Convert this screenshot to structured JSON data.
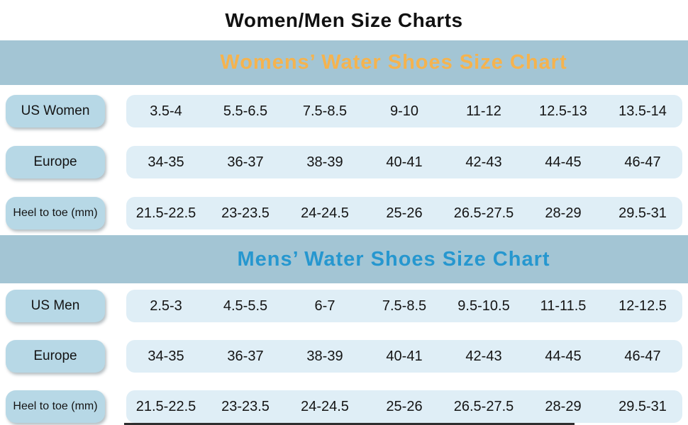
{
  "page_title": "Women/Men Size Charts",
  "colors": {
    "banner_bg": "#a3c5d4",
    "women_title_color": "#f5b34e",
    "men_title_color": "#2697cf",
    "label_box_bg": "#b7d8e6",
    "value_strip_bg": "#dfeef6",
    "text": "#1c1c1c"
  },
  "chart_data": [
    {
      "type": "table",
      "title": "Womens’ Water Shoes Size Chart",
      "title_color": "#f5b34e",
      "rows": [
        {
          "label": "US Women",
          "values": [
            "3.5-4",
            "5.5-6.5",
            "7.5-8.5",
            "9-10",
            "11-12",
            "12.5-13",
            "13.5-14"
          ]
        },
        {
          "label": "Europe",
          "values": [
            "34-35",
            "36-37",
            "38-39",
            "40-41",
            "42-43",
            "44-45",
            "46-47"
          ]
        },
        {
          "label": "Heel to toe (mm)",
          "values": [
            "21.5-22.5",
            "23-23.5",
            "24-24.5",
            "25-26",
            "26.5-27.5",
            "28-29",
            "29.5-31"
          ]
        }
      ]
    },
    {
      "type": "table",
      "title": "Mens’ Water Shoes Size Chart",
      "title_color": "#2697cf",
      "rows": [
        {
          "label": "US Men",
          "values": [
            "2.5-3",
            "4.5-5.5",
            "6-7",
            "7.5-8.5",
            "9.5-10.5",
            "11-11.5",
            "12-12.5"
          ]
        },
        {
          "label": "Europe",
          "values": [
            "34-35",
            "36-37",
            "38-39",
            "40-41",
            "42-43",
            "44-45",
            "46-47"
          ]
        },
        {
          "label": "Heel to toe (mm)",
          "values": [
            "21.5-22.5",
            "23-23.5",
            "24-24.5",
            "25-26",
            "26.5-27.5",
            "28-29",
            "29.5-31"
          ]
        }
      ]
    }
  ]
}
